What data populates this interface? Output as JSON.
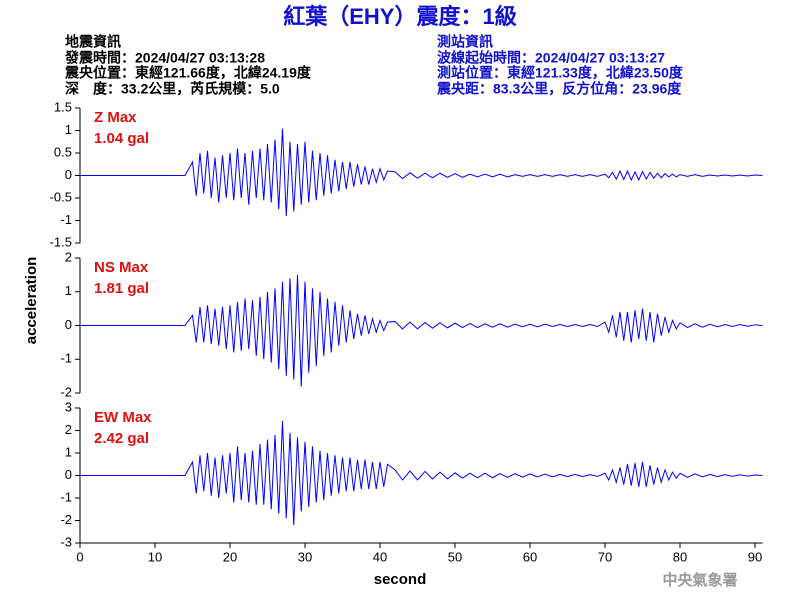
{
  "header": {
    "title": "紅葉（EHY）震度：1級",
    "left": [
      "地震資訊",
      "發震時間：2024/04/27 03:13:28",
      "震央位置：東經121.66度，北緯24.19度",
      "深　度：33.2公里，芮氏規模：5.0"
    ],
    "right": [
      "測站資訊",
      "波線起始時間：2024/04/27 03:13:27",
      "測站位置：東經121.33度，北緯23.50度",
      "震央距：83.3公里，反方位角：23.96度"
    ]
  },
  "footer": "中央氣象署",
  "chart_data": [
    {
      "type": "line",
      "annotations": [
        "Z Max",
        "1.04 gal"
      ],
      "color": "#0000ff",
      "xlim": [
        0,
        91
      ],
      "ylim": [
        -1.5,
        1.5
      ],
      "yticks": [
        1.5,
        1,
        0.5,
        0,
        -0.5,
        -1,
        -1.5
      ],
      "x": [
        0,
        14,
        15,
        15.5,
        16,
        16.5,
        17,
        17.5,
        18,
        18.5,
        19,
        19.5,
        20,
        20.5,
        21,
        21.5,
        22,
        22.5,
        23,
        23.5,
        24,
        24.5,
        25,
        25.5,
        26,
        26.5,
        27,
        27.5,
        28,
        28.5,
        29,
        29.5,
        30,
        30.5,
        31,
        31.5,
        32,
        32.5,
        33,
        33.5,
        34,
        34.5,
        35,
        35.5,
        36,
        36.5,
        37,
        37.5,
        38,
        38.5,
        39,
        39.5,
        40,
        40.5,
        41,
        42,
        43,
        44,
        45,
        46,
        47,
        48,
        49,
        50,
        51,
        52,
        53,
        54,
        55,
        56,
        57,
        58,
        59,
        60,
        61,
        62,
        63,
        64,
        65,
        66,
        67,
        68,
        69,
        70,
        70.5,
        71,
        71.5,
        72,
        72.5,
        73,
        73.5,
        74,
        74.5,
        75,
        75.5,
        76,
        76.5,
        77,
        77.5,
        78,
        78.5,
        79,
        79.5,
        80,
        81,
        82,
        83,
        84,
        85,
        86,
        87,
        88,
        89,
        90,
        91
      ],
      "values": [
        0,
        0,
        0.3,
        -0.45,
        0.5,
        -0.4,
        0.55,
        -0.5,
        0.4,
        -0.6,
        0.45,
        -0.5,
        0.5,
        -0.55,
        0.6,
        -0.5,
        0.5,
        -0.65,
        0.55,
        -0.5,
        0.6,
        -0.55,
        0.7,
        -0.6,
        0.8,
        -0.75,
        1.04,
        -0.9,
        0.75,
        -0.8,
        0.7,
        -0.65,
        0.75,
        -0.6,
        0.55,
        -0.55,
        0.5,
        -0.45,
        0.45,
        -0.4,
        0.35,
        -0.35,
        0.3,
        -0.3,
        0.3,
        -0.25,
        0.25,
        -0.2,
        0.2,
        -0.2,
        0.15,
        -0.15,
        0.15,
        -0.1,
        0.1,
        0.08,
        -0.07,
        0.06,
        -0.06,
        0.05,
        -0.05,
        0.05,
        -0.04,
        0.04,
        -0.04,
        0.03,
        -0.03,
        0.03,
        -0.03,
        0.03,
        -0.03,
        0.02,
        -0.02,
        0.02,
        -0.02,
        0.02,
        -0.02,
        0.02,
        -0.02,
        0.02,
        -0.02,
        0.02,
        -0.02,
        0.03,
        -0.05,
        0.07,
        -0.08,
        0.1,
        -0.09,
        0.1,
        -0.1,
        0.08,
        -0.1,
        0.09,
        -0.08,
        0.07,
        -0.06,
        0.05,
        -0.05,
        0.04,
        -0.03,
        0.03,
        -0.03,
        0.02,
        -0.02,
        0.02,
        -0.02,
        0.01,
        -0.01,
        0.01,
        -0.01,
        0.01,
        -0.01,
        0.01,
        0
      ]
    },
    {
      "type": "line",
      "annotations": [
        "NS Max",
        "1.81 gal"
      ],
      "color": "#0000ff",
      "ylabel": "acceleration",
      "xlim": [
        0,
        91
      ],
      "ylim": [
        -2,
        2
      ],
      "yticks": [
        2,
        1,
        0,
        -1,
        -2
      ],
      "x": [
        0,
        14,
        15,
        15.5,
        16,
        16.5,
        17,
        17.5,
        18,
        18.5,
        19,
        19.5,
        20,
        20.5,
        21,
        21.5,
        22,
        22.5,
        23,
        23.5,
        24,
        24.5,
        25,
        25.5,
        26,
        26.5,
        27,
        27.5,
        28,
        28.5,
        29,
        29.5,
        30,
        30.5,
        31,
        31.5,
        32,
        32.5,
        33,
        33.5,
        34,
        34.5,
        35,
        35.5,
        36,
        36.5,
        37,
        37.5,
        38,
        38.5,
        39,
        39.5,
        40,
        40.5,
        41,
        42,
        43,
        44,
        45,
        46,
        47,
        48,
        49,
        50,
        51,
        52,
        53,
        54,
        55,
        56,
        57,
        58,
        59,
        60,
        61,
        62,
        63,
        64,
        65,
        66,
        67,
        68,
        69,
        70,
        70.5,
        71,
        71.5,
        72,
        72.5,
        73,
        73.5,
        74,
        74.5,
        75,
        75.5,
        76,
        76.5,
        77,
        77.5,
        78,
        78.5,
        79,
        79.5,
        80,
        81,
        82,
        83,
        84,
        85,
        86,
        87,
        88,
        89,
        90,
        91
      ],
      "values": [
        0,
        0,
        0.3,
        -0.5,
        0.55,
        -0.5,
        0.6,
        -0.55,
        0.5,
        -0.6,
        0.55,
        -0.7,
        0.6,
        -0.8,
        0.7,
        -0.75,
        0.8,
        -0.7,
        0.75,
        -0.9,
        0.85,
        -1.0,
        1.0,
        -1.1,
        1.1,
        -1.3,
        1.3,
        -1.5,
        1.4,
        -1.6,
        1.5,
        -1.81,
        1.3,
        -1.4,
        1.1,
        -1.2,
        1.0,
        -0.9,
        0.8,
        -0.8,
        0.7,
        -0.6,
        0.6,
        -0.5,
        0.45,
        -0.4,
        0.35,
        -0.3,
        0.3,
        -0.25,
        0.2,
        -0.2,
        0.15,
        -0.15,
        0.1,
        0.12,
        -0.1,
        0.1,
        -0.1,
        0.09,
        -0.08,
        0.08,
        -0.07,
        0.07,
        -0.06,
        0.06,
        -0.06,
        0.05,
        -0.05,
        0.05,
        -0.05,
        0.04,
        -0.04,
        0.04,
        -0.04,
        0.04,
        -0.03,
        0.03,
        -0.03,
        0.03,
        -0.03,
        0.03,
        -0.03,
        0.1,
        -0.2,
        0.3,
        -0.35,
        0.4,
        -0.45,
        0.4,
        -0.5,
        0.45,
        -0.4,
        0.5,
        -0.45,
        0.4,
        -0.5,
        0.35,
        -0.3,
        0.25,
        -0.2,
        0.15,
        -0.1,
        0.08,
        -0.06,
        0.05,
        -0.05,
        0.04,
        -0.04,
        0.03,
        -0.03,
        0.03,
        -0.02,
        0.02,
        0
      ]
    },
    {
      "type": "line",
      "annotations": [
        "EW Max",
        "2.42 gal"
      ],
      "color": "#0000ff",
      "xlabel": "second",
      "xlim": [
        0,
        91
      ],
      "ylim": [
        -3,
        3
      ],
      "yticks": [
        3,
        2,
        1,
        0,
        -1,
        -2,
        -3
      ],
      "xticks": [
        0,
        10,
        20,
        30,
        40,
        50,
        60,
        70,
        80,
        90
      ],
      "x": [
        0,
        14,
        15,
        15.5,
        16,
        16.5,
        17,
        17.5,
        18,
        18.5,
        19,
        19.5,
        20,
        20.5,
        21,
        21.5,
        22,
        22.5,
        23,
        23.5,
        24,
        24.5,
        25,
        25.5,
        26,
        26.5,
        27,
        27.5,
        28,
        28.5,
        29,
        29.5,
        30,
        30.5,
        31,
        31.5,
        32,
        32.5,
        33,
        33.5,
        34,
        34.5,
        35,
        35.5,
        36,
        36.5,
        37,
        37.5,
        38,
        38.5,
        39,
        39.5,
        40,
        40.5,
        41,
        42,
        43,
        44,
        45,
        46,
        47,
        48,
        49,
        50,
        51,
        52,
        53,
        54,
        55,
        56,
        57,
        58,
        59,
        60,
        61,
        62,
        63,
        64,
        65,
        66,
        67,
        68,
        69,
        70,
        70.5,
        71,
        71.5,
        72,
        72.5,
        73,
        73.5,
        74,
        74.5,
        75,
        75.5,
        76,
        76.5,
        77,
        77.5,
        78,
        78.5,
        79,
        79.5,
        80,
        81,
        82,
        83,
        84,
        85,
        86,
        87,
        88,
        89,
        90,
        91
      ],
      "values": [
        0,
        0,
        0.6,
        -0.8,
        0.9,
        -0.7,
        1.0,
        -0.9,
        0.8,
        -1.0,
        0.9,
        -0.8,
        1.0,
        -1.2,
        1.3,
        -1.1,
        1.0,
        -1.2,
        1.1,
        -1.3,
        1.4,
        -1.3,
        1.6,
        -1.5,
        1.8,
        -1.7,
        2.42,
        -1.9,
        1.9,
        -2.2,
        1.7,
        -1.6,
        1.5,
        -1.4,
        1.3,
        -1.2,
        1.1,
        -1.1,
        1.0,
        -0.9,
        0.9,
        -0.8,
        0.8,
        -0.7,
        0.8,
        -0.7,
        0.7,
        -0.6,
        0.7,
        -0.6,
        0.6,
        -0.6,
        0.6,
        -0.5,
        0.5,
        0.25,
        -0.2,
        0.2,
        -0.2,
        0.18,
        -0.15,
        0.15,
        -0.15,
        0.12,
        -0.12,
        0.1,
        -0.1,
        0.1,
        -0.1,
        0.08,
        -0.08,
        0.08,
        -0.07,
        0.07,
        -0.06,
        0.06,
        -0.06,
        0.05,
        -0.05,
        0.05,
        -0.05,
        0.04,
        -0.04,
        0.1,
        -0.2,
        0.25,
        -0.3,
        0.35,
        -0.4,
        0.5,
        -0.45,
        0.55,
        -0.5,
        0.6,
        -0.5,
        0.45,
        -0.4,
        0.35,
        -0.3,
        0.25,
        -0.2,
        0.15,
        -0.12,
        0.1,
        -0.08,
        0.07,
        -0.06,
        0.05,
        -0.05,
        0.04,
        -0.04,
        0.03,
        -0.03,
        0.02,
        0
      ]
    }
  ]
}
